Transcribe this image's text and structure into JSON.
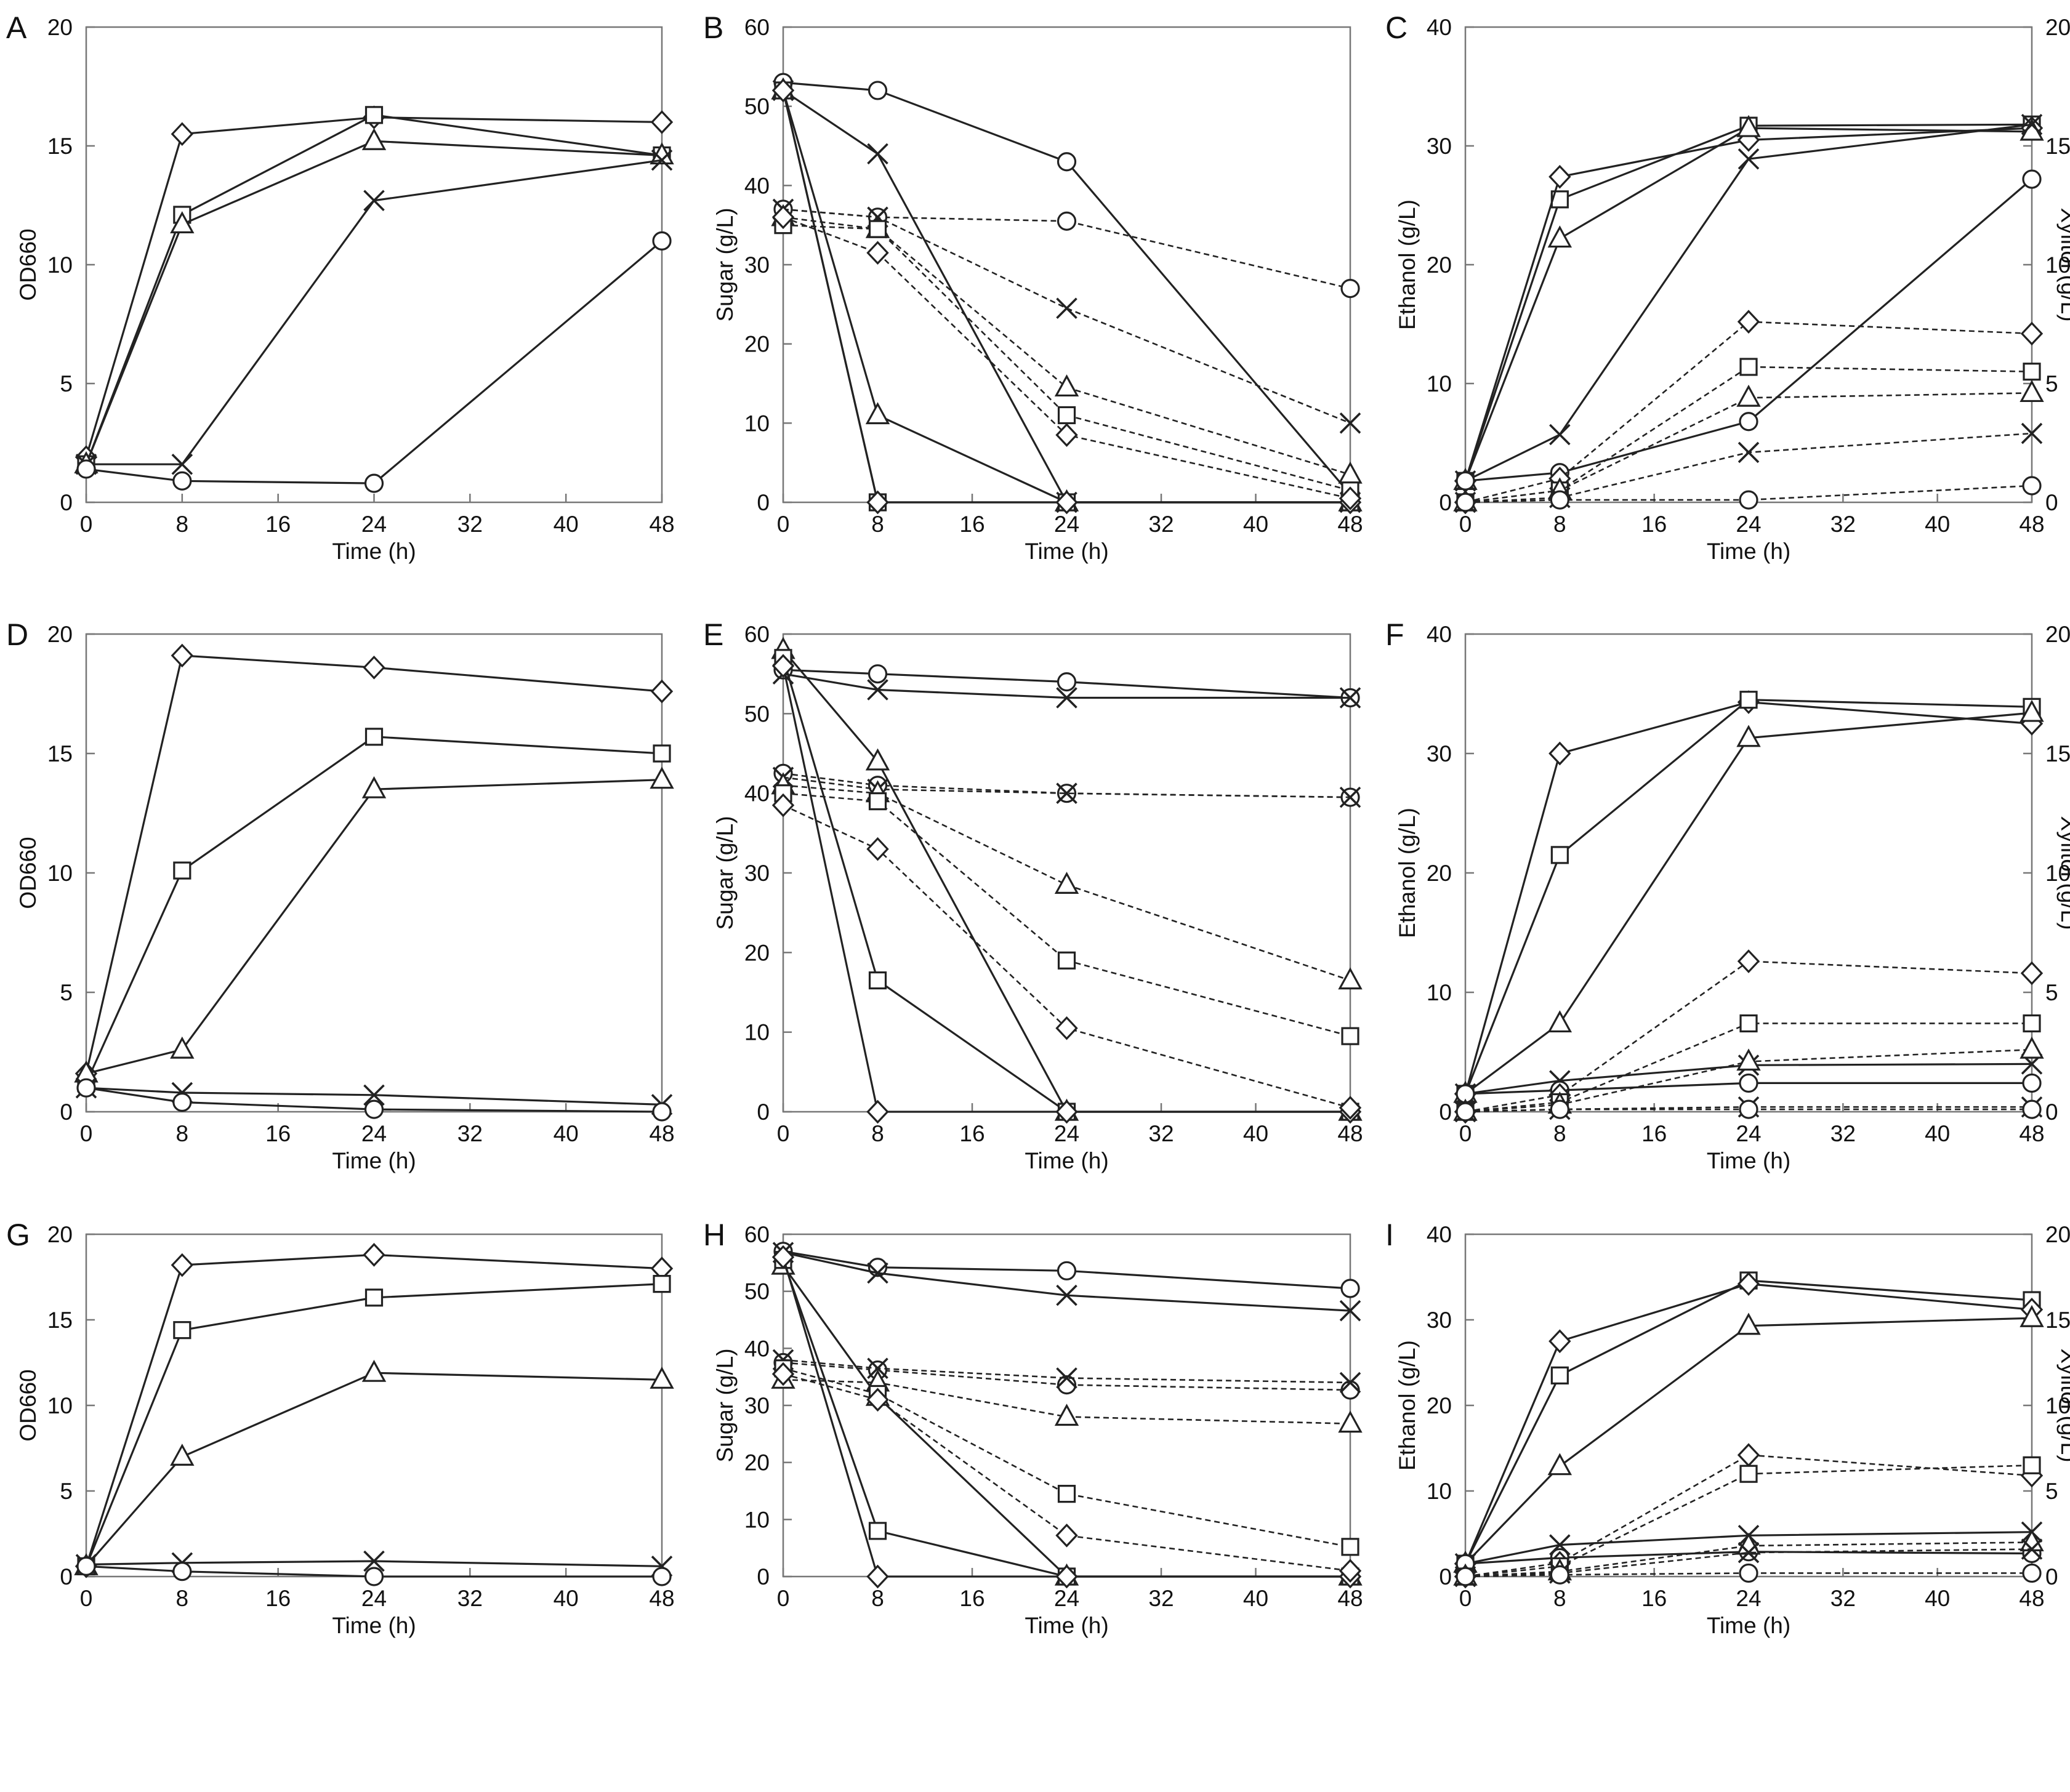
{
  "figure": {
    "panels": [
      "A",
      "B",
      "C",
      "D",
      "E",
      "F",
      "G",
      "H",
      "I"
    ]
  },
  "chart_data": [
    {
      "panel": "A",
      "type": "line",
      "xlabel": "Time (h)",
      "ylabel": "OD660",
      "xlim": [
        0,
        48
      ],
      "ylim": [
        0,
        20
      ],
      "xticks": [
        "0",
        "8",
        "16",
        "24",
        "32",
        "40",
        "48"
      ],
      "yticks": [
        "0",
        "5",
        "10",
        "15",
        "20"
      ],
      "x": [
        0,
        8,
        24,
        48
      ],
      "series": [
        {
          "marker": "diamond",
          "dash": false,
          "values": [
            1.9,
            15.5,
            16.2,
            16.0
          ]
        },
        {
          "marker": "square",
          "dash": false,
          "values": [
            1.6,
            12.1,
            16.3,
            14.6
          ]
        },
        {
          "marker": "triangle",
          "dash": false,
          "values": [
            1.6,
            11.7,
            15.2,
            14.6
          ]
        },
        {
          "marker": "cross",
          "dash": false,
          "values": [
            1.6,
            1.6,
            12.7,
            14.4
          ]
        },
        {
          "marker": "circle",
          "dash": false,
          "values": [
            1.4,
            0.9,
            0.8,
            11.0
          ]
        }
      ]
    },
    {
      "panel": "B",
      "type": "line",
      "xlabel": "Time (h)",
      "ylabel": "Sugar (g/L)",
      "xlim": [
        0,
        48
      ],
      "ylim": [
        0,
        60
      ],
      "xticks": [
        "0",
        "8",
        "16",
        "24",
        "32",
        "40",
        "48"
      ],
      "yticks": [
        "0",
        "10",
        "20",
        "30",
        "40",
        "50",
        "60"
      ],
      "x": [
        0,
        8,
        24,
        48
      ],
      "series": [
        {
          "marker": "circle",
          "dash": false,
          "values": [
            53,
            52,
            43,
            1
          ]
        },
        {
          "marker": "cross",
          "dash": false,
          "values": [
            52,
            44,
            0,
            0
          ]
        },
        {
          "marker": "triangle",
          "dash": false,
          "values": [
            52,
            11,
            0,
            0
          ]
        },
        {
          "marker": "square",
          "dash": false,
          "values": [
            52,
            0,
            0,
            0
          ]
        },
        {
          "marker": "diamond",
          "dash": false,
          "values": [
            52,
            0,
            0,
            0
          ]
        },
        {
          "marker": "circle",
          "dash": true,
          "values": [
            37,
            36,
            35.5,
            27
          ]
        },
        {
          "marker": "cross",
          "dash": true,
          "values": [
            37,
            36,
            24.5,
            10
          ]
        },
        {
          "marker": "triangle",
          "dash": true,
          "values": [
            36,
            34.5,
            14.5,
            3.5
          ]
        },
        {
          "marker": "square",
          "dash": true,
          "values": [
            35,
            34.5,
            11,
            1.5
          ]
        },
        {
          "marker": "diamond",
          "dash": true,
          "values": [
            36,
            31.5,
            8.5,
            0.5
          ]
        }
      ]
    },
    {
      "panel": "C",
      "type": "line",
      "xlabel": "Time (h)",
      "ylabel": "Ethanol (g/L)",
      "y2label": "Xylitol (g/L)",
      "xlim": [
        0,
        48
      ],
      "ylim": [
        0,
        40
      ],
      "y2lim": [
        0,
        20
      ],
      "xticks": [
        "0",
        "8",
        "16",
        "24",
        "32",
        "40",
        "48"
      ],
      "yticks": [
        "0",
        "10",
        "20",
        "30",
        "40"
      ],
      "y2ticks": [
        "0",
        "5",
        "10",
        "15",
        "20"
      ],
      "x": [
        0,
        8,
        24,
        48
      ],
      "series": [
        {
          "marker": "square",
          "dash": false,
          "values": [
            1.8,
            25.5,
            31.7,
            31.8
          ]
        },
        {
          "marker": "diamond",
          "dash": false,
          "values": [
            1.8,
            27.4,
            30.5,
            31.5
          ]
        },
        {
          "marker": "triangle",
          "dash": false,
          "values": [
            1.8,
            22.2,
            31.5,
            31.2
          ]
        },
        {
          "marker": "cross",
          "dash": false,
          "values": [
            1.8,
            5.7,
            28.9,
            31.8
          ]
        },
        {
          "marker": "circle",
          "dash": false,
          "values": [
            1.8,
            2.5,
            6.8,
            27.2
          ]
        },
        {
          "marker": "diamond",
          "dash": true,
          "values": [
            0,
            1.0,
            7.6,
            7.1
          ]
        },
        {
          "marker": "square",
          "dash": true,
          "values": [
            0,
            0.5,
            5.7,
            5.5
          ]
        },
        {
          "marker": "triangle",
          "dash": true,
          "values": [
            0,
            0.5,
            4.4,
            4.6
          ]
        },
        {
          "marker": "cross",
          "dash": true,
          "values": [
            0,
            0.2,
            2.1,
            2.9
          ]
        },
        {
          "marker": "circle",
          "dash": true,
          "values": [
            0,
            0.1,
            0.1,
            0.7
          ]
        }
      ]
    },
    {
      "panel": "D",
      "type": "line",
      "xlabel": "Time (h)",
      "ylabel": "OD660",
      "xlim": [
        0,
        48
      ],
      "ylim": [
        0,
        20
      ],
      "xticks": [
        "0",
        "8",
        "16",
        "24",
        "32",
        "40",
        "48"
      ],
      "yticks": [
        "0",
        "5",
        "10",
        "15",
        "20"
      ],
      "x": [
        0,
        8,
        24,
        48
      ],
      "series": [
        {
          "marker": "diamond",
          "dash": false,
          "values": [
            1.6,
            19.1,
            18.6,
            17.6
          ]
        },
        {
          "marker": "square",
          "dash": false,
          "values": [
            1.2,
            10.1,
            15.7,
            15.0
          ]
        },
        {
          "marker": "triangle",
          "dash": false,
          "values": [
            1.6,
            2.6,
            13.5,
            13.9
          ]
        },
        {
          "marker": "cross",
          "dash": false,
          "values": [
            1.0,
            0.8,
            0.7,
            0.3
          ]
        },
        {
          "marker": "circle",
          "dash": false,
          "values": [
            1.0,
            0.4,
            0.1,
            0.0
          ]
        }
      ]
    },
    {
      "panel": "E",
      "type": "line",
      "xlabel": "Time (h)",
      "ylabel": "Sugar (g/L)",
      "xlim": [
        0,
        48
      ],
      "ylim": [
        0,
        60
      ],
      "xticks": [
        "0",
        "8",
        "16",
        "24",
        "32",
        "40",
        "48"
      ],
      "yticks": [
        "0",
        "10",
        "20",
        "30",
        "40",
        "50",
        "60"
      ],
      "x": [
        0,
        8,
        24,
        48
      ],
      "series": [
        {
          "marker": "circle",
          "dash": false,
          "values": [
            55.5,
            55,
            54,
            52
          ]
        },
        {
          "marker": "cross",
          "dash": false,
          "values": [
            55,
            53,
            52,
            52
          ]
        },
        {
          "marker": "triangle",
          "dash": false,
          "values": [
            58,
            44,
            0,
            0
          ]
        },
        {
          "marker": "square",
          "dash": false,
          "values": [
            57,
            16.5,
            0,
            0
          ]
        },
        {
          "marker": "diamond",
          "dash": false,
          "values": [
            56,
            0,
            0,
            0
          ]
        },
        {
          "marker": "circle",
          "dash": true,
          "values": [
            42.5,
            41,
            40,
            39.5
          ]
        },
        {
          "marker": "cross",
          "dash": true,
          "values": [
            42,
            40.5,
            40,
            39.5
          ]
        },
        {
          "marker": "triangle",
          "dash": true,
          "values": [
            41,
            40,
            28.5,
            16.5
          ]
        },
        {
          "marker": "square",
          "dash": true,
          "values": [
            40,
            39,
            19,
            9.5
          ]
        },
        {
          "marker": "diamond",
          "dash": true,
          "values": [
            38.5,
            33,
            10.5,
            0.5
          ]
        }
      ]
    },
    {
      "panel": "F",
      "type": "line",
      "xlabel": "Time (h)",
      "ylabel": "Ethanol (g/L)",
      "y2label": "Xylitol (g/L)",
      "xlim": [
        0,
        48
      ],
      "ylim": [
        0,
        40
      ],
      "y2lim": [
        0,
        20
      ],
      "xticks": [
        "0",
        "8",
        "16",
        "24",
        "32",
        "40",
        "48"
      ],
      "yticks": [
        "0",
        "10",
        "20",
        "30",
        "40"
      ],
      "y2ticks": [
        "0",
        "5",
        "10",
        "15",
        "20"
      ],
      "x": [
        0,
        8,
        24,
        48
      ],
      "series": [
        {
          "marker": "diamond",
          "dash": false,
          "values": [
            1.5,
            30.0,
            34.3,
            32.5
          ]
        },
        {
          "marker": "square",
          "dash": false,
          "values": [
            1.5,
            21.5,
            34.5,
            33.9
          ]
        },
        {
          "marker": "triangle",
          "dash": false,
          "values": [
            1.5,
            7.4,
            31.3,
            33.4
          ]
        },
        {
          "marker": "cross",
          "dash": false,
          "values": [
            1.5,
            2.6,
            3.9,
            4.0
          ]
        },
        {
          "marker": "circle",
          "dash": false,
          "values": [
            1.5,
            1.8,
            2.4,
            2.4
          ]
        },
        {
          "marker": "diamond",
          "dash": true,
          "values": [
            0,
            0.7,
            6.3,
            5.8
          ]
        },
        {
          "marker": "square",
          "dash": true,
          "values": [
            0,
            0.4,
            3.7,
            3.7
          ]
        },
        {
          "marker": "triangle",
          "dash": true,
          "values": [
            0,
            0.3,
            2.1,
            2.6
          ]
        },
        {
          "marker": "cross",
          "dash": true,
          "values": [
            0,
            0.1,
            0.2,
            0.2
          ]
        },
        {
          "marker": "circle",
          "dash": true,
          "values": [
            0,
            0.1,
            0.1,
            0.1
          ]
        }
      ]
    },
    {
      "panel": "G",
      "type": "line",
      "xlabel": "Time (h)",
      "ylabel": "OD660",
      "xlim": [
        0,
        48
      ],
      "ylim": [
        0,
        20
      ],
      "xticks": [
        "0",
        "8",
        "16",
        "24",
        "32",
        "40",
        "48"
      ],
      "yticks": [
        "0",
        "5",
        "10",
        "15",
        "20"
      ],
      "x": [
        0,
        8,
        24,
        48
      ],
      "series": [
        {
          "marker": "diamond",
          "dash": false,
          "values": [
            0.6,
            18.2,
            18.8,
            18.0
          ]
        },
        {
          "marker": "square",
          "dash": false,
          "values": [
            0.6,
            14.4,
            16.3,
            17.1
          ]
        },
        {
          "marker": "triangle",
          "dash": false,
          "values": [
            0.6,
            7.0,
            11.9,
            11.5
          ]
        },
        {
          "marker": "cross",
          "dash": false,
          "values": [
            0.7,
            0.8,
            0.9,
            0.6
          ]
        },
        {
          "marker": "circle",
          "dash": false,
          "values": [
            0.6,
            0.3,
            0.0,
            0.0
          ]
        }
      ]
    },
    {
      "panel": "H",
      "type": "line",
      "xlabel": "Time (h)",
      "ylabel": "Sugar (g/L)",
      "xlim": [
        0,
        48
      ],
      "ylim": [
        0,
        60
      ],
      "xticks": [
        "0",
        "8",
        "16",
        "24",
        "32",
        "40",
        "48"
      ],
      "yticks": [
        "0",
        "10",
        "20",
        "30",
        "40",
        "50",
        "60"
      ],
      "x": [
        0,
        8,
        24,
        48
      ],
      "series": [
        {
          "marker": "circle",
          "dash": false,
          "values": [
            57,
            54.2,
            53.6,
            50.5
          ]
        },
        {
          "marker": "cross",
          "dash": false,
          "values": [
            56.8,
            53.2,
            49.3,
            46.6
          ]
        },
        {
          "marker": "triangle",
          "dash": false,
          "values": [
            54.5,
            31.5,
            0,
            0
          ]
        },
        {
          "marker": "square",
          "dash": false,
          "values": [
            55.5,
            8,
            0,
            0
          ]
        },
        {
          "marker": "diamond",
          "dash": false,
          "values": [
            56,
            0,
            0,
            0
          ]
        },
        {
          "marker": "circle",
          "dash": true,
          "values": [
            37.5,
            36.2,
            33.6,
            32.7
          ]
        },
        {
          "marker": "cross",
          "dash": true,
          "values": [
            38,
            36.5,
            34.8,
            34
          ]
        },
        {
          "marker": "triangle",
          "dash": true,
          "values": [
            34.5,
            34,
            28,
            26.8
          ]
        },
        {
          "marker": "square",
          "dash": true,
          "values": [
            36.5,
            32,
            14.5,
            5.2
          ]
        },
        {
          "marker": "diamond",
          "dash": true,
          "values": [
            35.5,
            31,
            7.2,
            1
          ]
        }
      ]
    },
    {
      "panel": "I",
      "type": "line",
      "xlabel": "Time (h)",
      "ylabel": "Ethanol (g/L)",
      "y2label": "Xylitol (g/L)",
      "xlim": [
        0,
        48
      ],
      "ylim": [
        0,
        40
      ],
      "y2lim": [
        0,
        20
      ],
      "xticks": [
        "0",
        "8",
        "16",
        "24",
        "32",
        "40",
        "48"
      ],
      "yticks": [
        "0",
        "10",
        "20",
        "30",
        "40"
      ],
      "y2ticks": [
        "0",
        "5",
        "10",
        "15",
        "20"
      ],
      "x": [
        0,
        8,
        24,
        48
      ],
      "series": [
        {
          "marker": "square",
          "dash": false,
          "values": [
            1.5,
            23.5,
            34.6,
            32.3
          ]
        },
        {
          "marker": "diamond",
          "dash": false,
          "values": [
            1.5,
            27.5,
            34.2,
            31.2
          ]
        },
        {
          "marker": "triangle",
          "dash": false,
          "values": [
            1.5,
            12.9,
            29.3,
            30.2
          ]
        },
        {
          "marker": "cross",
          "dash": false,
          "values": [
            1.5,
            3.7,
            4.8,
            5.2
          ]
        },
        {
          "marker": "circle",
          "dash": false,
          "values": [
            1.5,
            2.2,
            2.9,
            2.7
          ]
        },
        {
          "marker": "diamond",
          "dash": true,
          "values": [
            0,
            0.8,
            7.1,
            5.9
          ]
        },
        {
          "marker": "square",
          "dash": true,
          "values": [
            0,
            0.6,
            6.0,
            6.5
          ]
        },
        {
          "marker": "triangle",
          "dash": true,
          "values": [
            0,
            0.3,
            1.8,
            2.0
          ]
        },
        {
          "marker": "cross",
          "dash": true,
          "values": [
            0,
            0.2,
            1.4,
            1.6
          ]
        },
        {
          "marker": "circle",
          "dash": true,
          "values": [
            0,
            0.1,
            0.2,
            0.2
          ]
        }
      ]
    }
  ]
}
